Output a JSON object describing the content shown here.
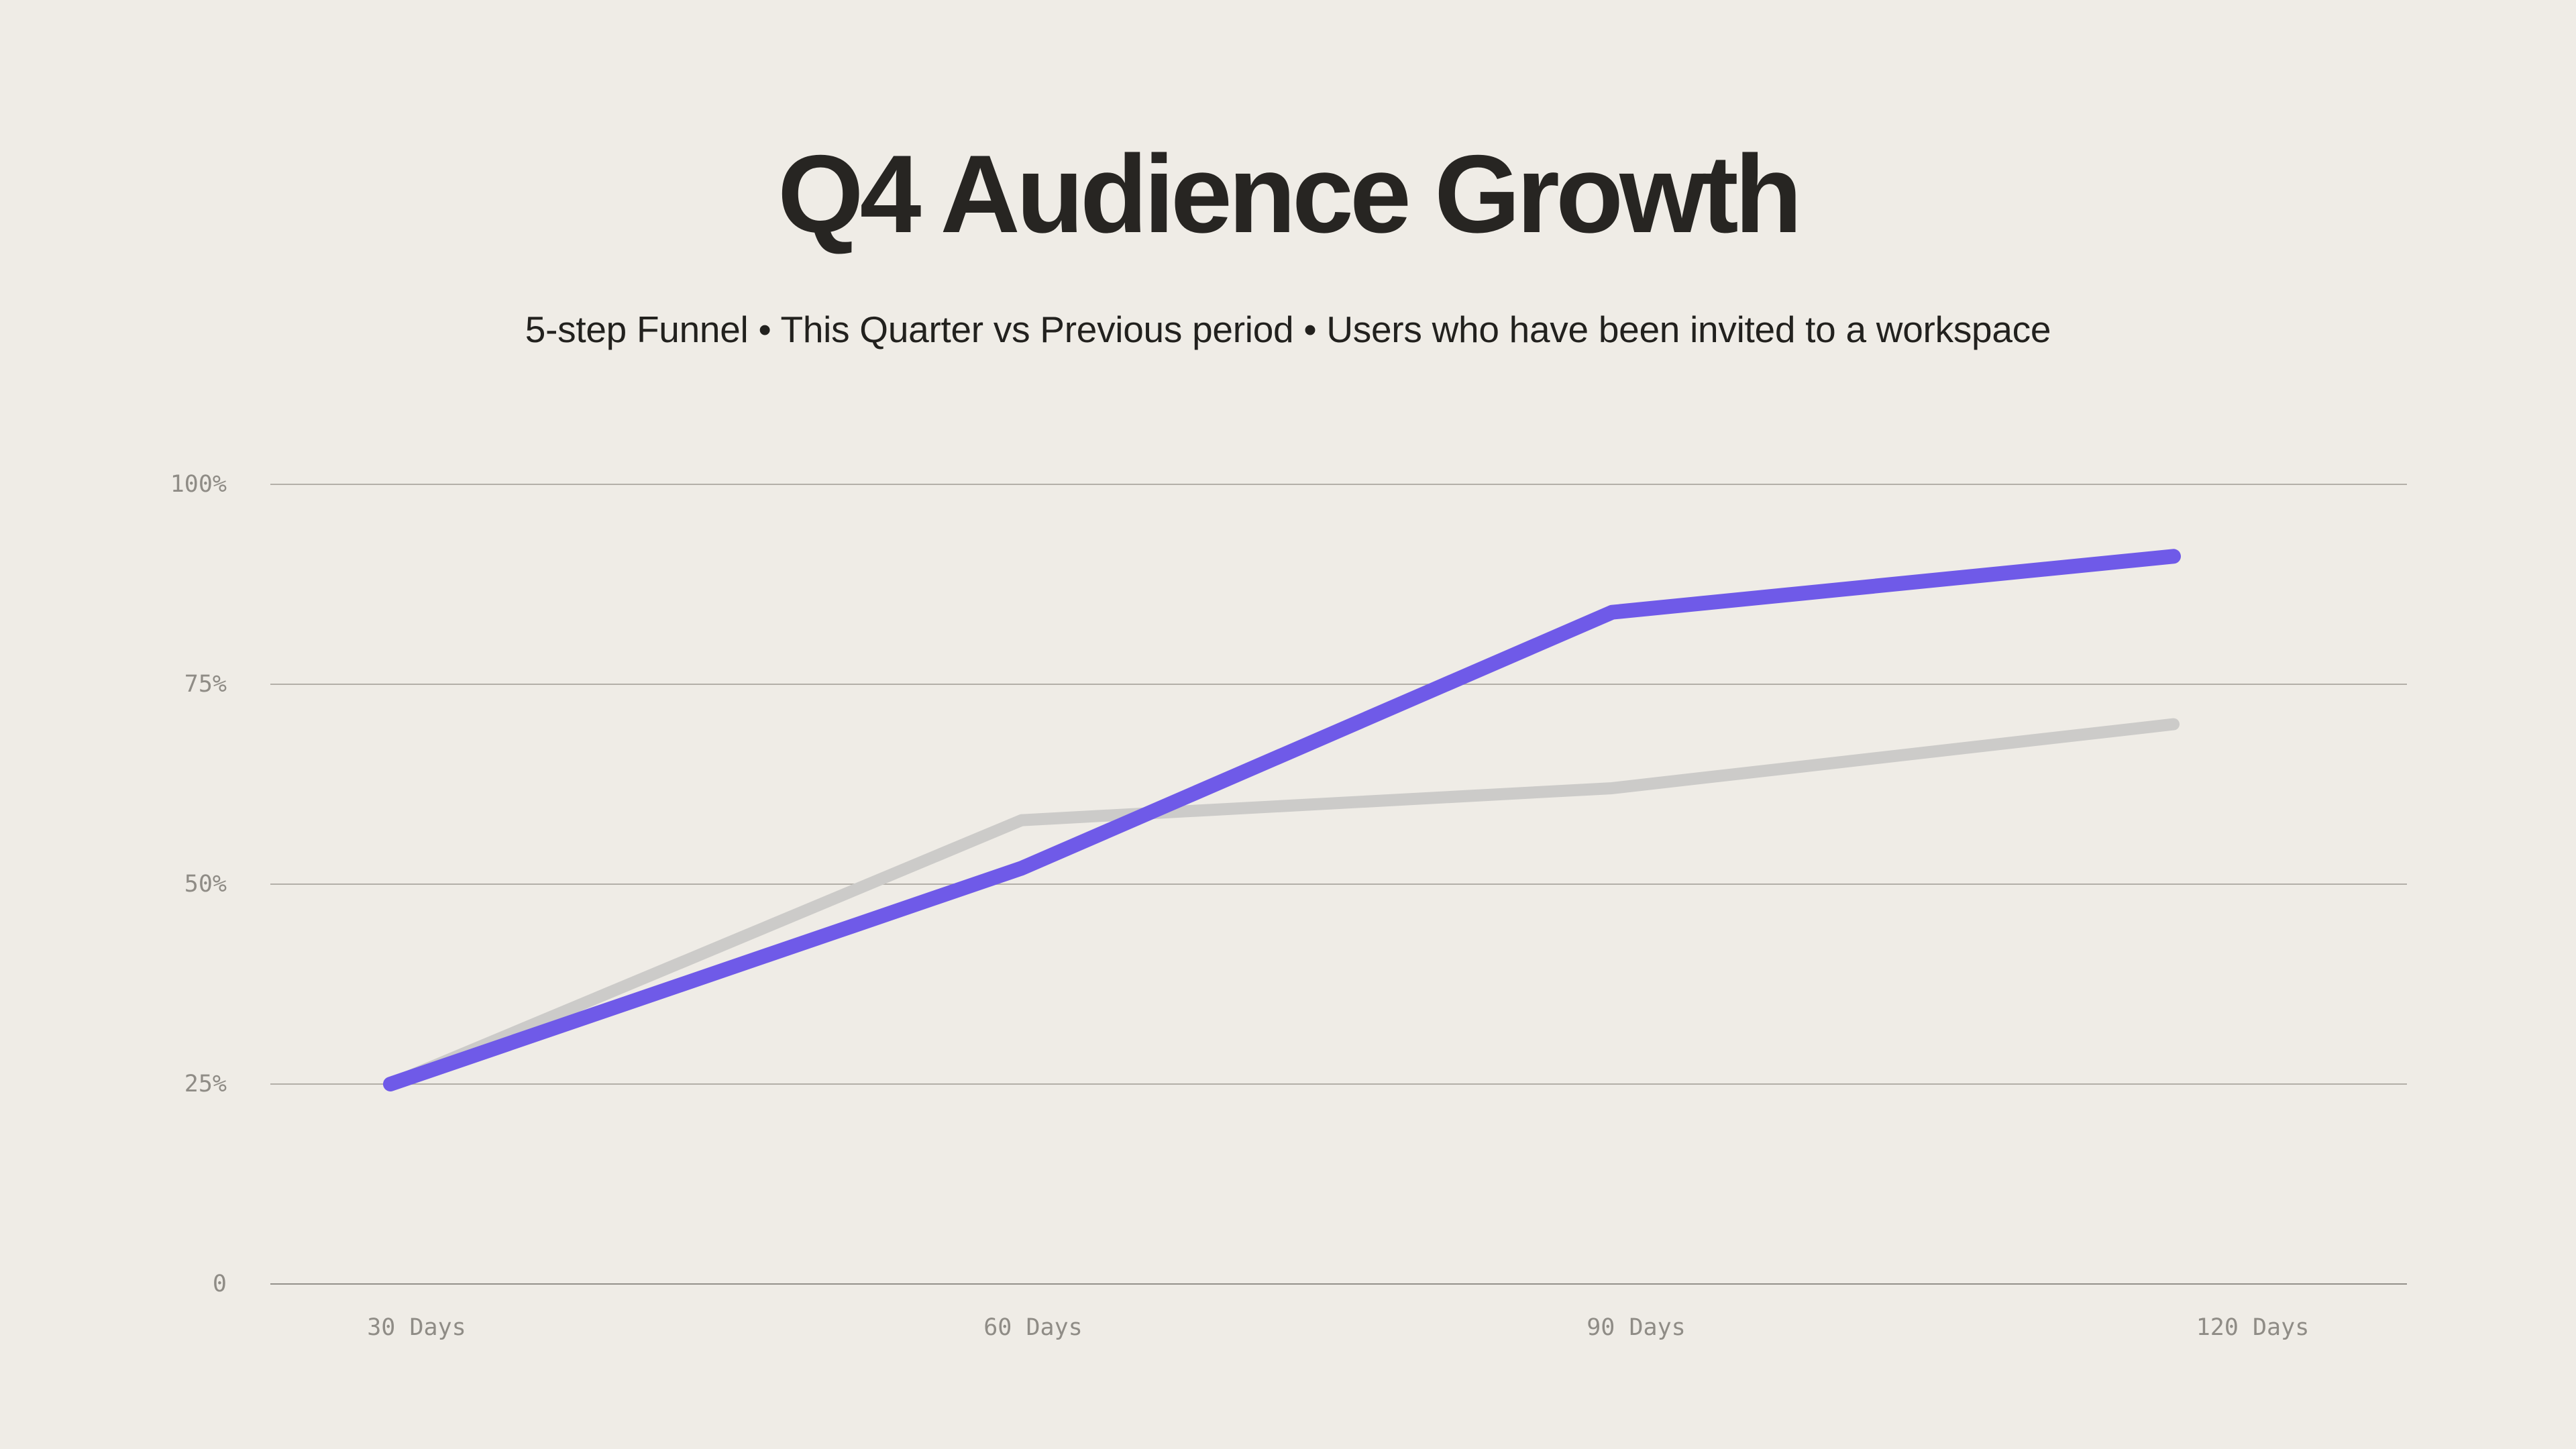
{
  "page": {
    "background_color": "#EFECE6"
  },
  "header": {
    "title": "Q4 Audience Growth",
    "subtitle": "5-step Funnel • This Quarter vs Previous period • Users who have been invited to a workspace"
  },
  "chart_data": {
    "type": "line",
    "title": "Q4 Audience Growth",
    "subtitle": "5-step Funnel • This Quarter vs Previous period • Users who have been invited to a workspace",
    "categories": [
      "30 Days",
      "60 Days",
      "90 Days",
      "120 Days"
    ],
    "series": [
      {
        "name": "This Quarter",
        "color": "#6F5AE8",
        "stroke_width": 22,
        "values": [
          25,
          52,
          84,
          91
        ]
      },
      {
        "name": "Previous period",
        "color": "#CCCBC9",
        "stroke_width": 18,
        "values": [
          25,
          58,
          62,
          70
        ]
      }
    ],
    "xlabel": "",
    "ylabel": "",
    "ylim": [
      0,
      100
    ],
    "yticks": [
      {
        "value": 100,
        "label": "100%"
      },
      {
        "value": 75,
        "label": "75%"
      },
      {
        "value": 50,
        "label": "50%"
      },
      {
        "value": 25,
        "label": "25%"
      },
      {
        "value": 0,
        "label": "0"
      }
    ],
    "grid": true,
    "legend_position": "none",
    "colors": {
      "gridline": "#B3AFA8",
      "baseline": "#94918A",
      "tick_label": "#8F8C86"
    }
  }
}
